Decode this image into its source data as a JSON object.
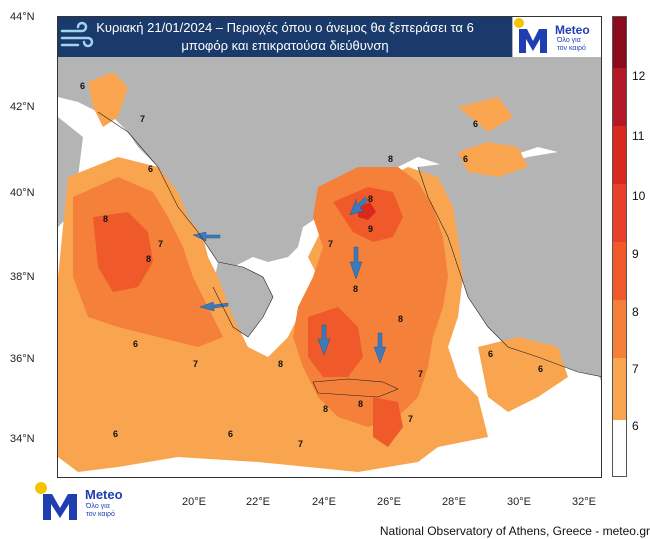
{
  "title": {
    "line1": "Κυριακή 21/01/2024 – Περιοχές όπου ο άνεμος θα ξεπεράσει τα 6",
    "line2": "μποφόρ και επικρατούσα διεύθυνση"
  },
  "logo": {
    "brand": "Meteo",
    "tagline_line1": "Όλο για",
    "tagline_line2": "τον καιρό",
    "brand_color": "#1f3fb0",
    "sun_color": "#f5c400"
  },
  "axes": {
    "lat_labels": [
      "44°N",
      "42°N",
      "40°N",
      "38°N",
      "36°N",
      "34°N"
    ],
    "lon_labels": [
      "20°E",
      "22°E",
      "24°E",
      "26°E",
      "28°E",
      "30°E",
      "32°E"
    ]
  },
  "colorbar": {
    "labels": [
      "12",
      "11",
      "10",
      "9",
      "8",
      "7",
      "6"
    ],
    "colors": [
      "#8b0a1e",
      "#b31826",
      "#d9281e",
      "#f05a2a",
      "#f5803a",
      "#f9a54f",
      "#fbd08a",
      "#ffffff"
    ]
  },
  "map": {
    "land_color": "#b4b4b4",
    "sea_color": "#ffffff",
    "wind_levels": {
      "bf6": "#f9a54f",
      "bf7": "#f5803a",
      "bf8": "#f05a2a",
      "bf9": "#d9281e"
    },
    "contour_labels": [
      "6",
      "7",
      "8",
      "9"
    ],
    "arrow_color": "#3e79b8"
  },
  "footer": "National Observatory of Athens, Greece - meteo.gr"
}
